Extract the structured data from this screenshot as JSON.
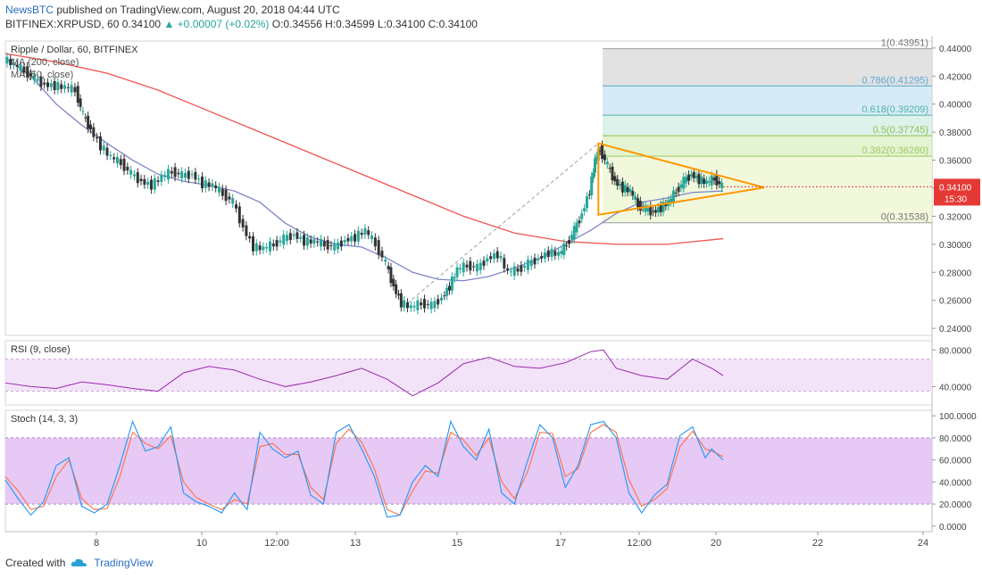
{
  "header": {
    "publisher": "NewsBTC",
    "published_text": " published on TradingView.com, August 20, 2018 04:44 UTC",
    "symbol": "BITFINEX:XRPUSD, 60",
    "price": "0.34100",
    "change": "+0.00007 (+0.02%)",
    "ohlc": "O:0.34556 H:0.34599 L:0.34100 C:0.34100"
  },
  "chart_data": [
    {
      "type": "candlestick",
      "title": "Ripple / Dollar, 60, BITFINEX",
      "indicators": [
        "MA (200, close)",
        "MA (50, close)"
      ],
      "ylim": [
        0.235,
        0.445
      ],
      "y_ticks": [
        "0.44000",
        "0.42000",
        "0.40000",
        "0.38000",
        "0.36000",
        "0.34000",
        "0.32000",
        "0.30000",
        "0.28000",
        "0.26000",
        "0.24000"
      ],
      "last_price": "0.34100",
      "countdown": "15:30",
      "x_ticks": [
        "8",
        "10",
        "12:00",
        "13",
        "15",
        "17",
        "12:00",
        "20",
        "22",
        "24"
      ],
      "fib_levels": [
        {
          "label": "1(0.43951)",
          "value": 0.43951
        },
        {
          "label": "0.786(0.41295)",
          "value": 0.41295
        },
        {
          "label": "0.618(0.39209)",
          "value": 0.39209
        },
        {
          "label": "0.5(0.37745)",
          "value": 0.37745
        },
        {
          "label": "0.382(0.36280)",
          "value": 0.3628
        },
        {
          "label": "0(0.31538)",
          "value": 0.31538
        }
      ],
      "price_path": [
        [
          0,
          0.432
        ],
        [
          8,
          0.428
        ],
        [
          16,
          0.424
        ],
        [
          24,
          0.418
        ],
        [
          32,
          0.414
        ],
        [
          40,
          0.413
        ],
        [
          48,
          0.412
        ],
        [
          56,
          0.41
        ],
        [
          62,
          0.392
        ],
        [
          68,
          0.382
        ],
        [
          76,
          0.37
        ],
        [
          84,
          0.362
        ],
        [
          92,
          0.358
        ],
        [
          100,
          0.35
        ],
        [
          108,
          0.345
        ],
        [
          116,
          0.342
        ],
        [
          124,
          0.348
        ],
        [
          132,
          0.352
        ],
        [
          140,
          0.349
        ],
        [
          148,
          0.35
        ],
        [
          156,
          0.343
        ],
        [
          164,
          0.342
        ],
        [
          172,
          0.336
        ],
        [
          180,
          0.33
        ],
        [
          188,
          0.312
        ],
        [
          196,
          0.298
        ],
        [
          204,
          0.297
        ],
        [
          212,
          0.3
        ],
        [
          220,
          0.304
        ],
        [
          228,
          0.307
        ],
        [
          236,
          0.302
        ],
        [
          244,
          0.302
        ],
        [
          252,
          0.3
        ],
        [
          260,
          0.298
        ],
        [
          268,
          0.303
        ],
        [
          276,
          0.305
        ],
        [
          284,
          0.31
        ],
        [
          292,
          0.3
        ],
        [
          300,
          0.286
        ],
        [
          306,
          0.27
        ],
        [
          312,
          0.258
        ],
        [
          320,
          0.255
        ],
        [
          328,
          0.258
        ],
        [
          336,
          0.256
        ],
        [
          344,
          0.262
        ],
        [
          350,
          0.27
        ],
        [
          356,
          0.282
        ],
        [
          364,
          0.285
        ],
        [
          372,
          0.283
        ],
        [
          380,
          0.29
        ],
        [
          388,
          0.293
        ],
        [
          396,
          0.28
        ],
        [
          404,
          0.282
        ],
        [
          412,
          0.286
        ],
        [
          420,
          0.29
        ],
        [
          428,
          0.294
        ],
        [
          436,
          0.293
        ],
        [
          442,
          0.3
        ],
        [
          448,
          0.31
        ],
        [
          454,
          0.322
        ],
        [
          460,
          0.338
        ],
        [
          464,
          0.36
        ],
        [
          468,
          0.368
        ],
        [
          474,
          0.356
        ],
        [
          480,
          0.345
        ],
        [
          486,
          0.34
        ],
        [
          492,
          0.338
        ],
        [
          498,
          0.328
        ],
        [
          504,
          0.325
        ],
        [
          510,
          0.323
        ],
        [
          516,
          0.326
        ],
        [
          522,
          0.33
        ],
        [
          528,
          0.338
        ],
        [
          534,
          0.345
        ],
        [
          540,
          0.35
        ],
        [
          546,
          0.346
        ],
        [
          552,
          0.344
        ],
        [
          558,
          0.347
        ],
        [
          564,
          0.341
        ]
      ],
      "ma200": [
        [
          0,
          0.436
        ],
        [
          40,
          0.43
        ],
        [
          80,
          0.422
        ],
        [
          120,
          0.41
        ],
        [
          160,
          0.395
        ],
        [
          200,
          0.38
        ],
        [
          240,
          0.365
        ],
        [
          280,
          0.35
        ],
        [
          320,
          0.335
        ],
        [
          360,
          0.32
        ],
        [
          400,
          0.308
        ],
        [
          440,
          0.302
        ],
        [
          480,
          0.3
        ],
        [
          520,
          0.3
        ],
        [
          564,
          0.304
        ]
      ],
      "ma50": [
        [
          0,
          0.433
        ],
        [
          20,
          0.42
        ],
        [
          40,
          0.4
        ],
        [
          60,
          0.385
        ],
        [
          80,
          0.372
        ],
        [
          100,
          0.36
        ],
        [
          120,
          0.35
        ],
        [
          140,
          0.345
        ],
        [
          160,
          0.342
        ],
        [
          180,
          0.338
        ],
        [
          200,
          0.33
        ],
        [
          220,
          0.315
        ],
        [
          240,
          0.305
        ],
        [
          260,
          0.3
        ],
        [
          280,
          0.298
        ],
        [
          300,
          0.29
        ],
        [
          320,
          0.28
        ],
        [
          340,
          0.275
        ],
        [
          360,
          0.274
        ],
        [
          380,
          0.277
        ],
        [
          400,
          0.283
        ],
        [
          420,
          0.29
        ],
        [
          440,
          0.3
        ],
        [
          460,
          0.31
        ],
        [
          480,
          0.322
        ],
        [
          500,
          0.33
        ],
        [
          520,
          0.333
        ],
        [
          540,
          0.337
        ],
        [
          564,
          0.338
        ]
      ]
    },
    {
      "type": "line",
      "title": "RSI (9, close)",
      "ylim": [
        20,
        90
      ],
      "y_ticks": [
        "80.0000",
        "40.0000"
      ],
      "band": [
        35,
        70
      ],
      "values": [
        [
          0,
          44
        ],
        [
          20,
          40
        ],
        [
          40,
          38
        ],
        [
          60,
          45
        ],
        [
          80,
          42
        ],
        [
          100,
          38
        ],
        [
          120,
          35
        ],
        [
          140,
          55
        ],
        [
          160,
          62
        ],
        [
          180,
          58
        ],
        [
          200,
          48
        ],
        [
          220,
          40
        ],
        [
          240,
          45
        ],
        [
          260,
          52
        ],
        [
          280,
          60
        ],
        [
          300,
          48
        ],
        [
          320,
          30
        ],
        [
          340,
          44
        ],
        [
          360,
          65
        ],
        [
          380,
          72
        ],
        [
          400,
          62
        ],
        [
          420,
          60
        ],
        [
          440,
          66
        ],
        [
          460,
          78
        ],
        [
          470,
          80
        ],
        [
          480,
          60
        ],
        [
          500,
          52
        ],
        [
          520,
          48
        ],
        [
          540,
          70
        ],
        [
          555,
          60
        ],
        [
          564,
          52
        ]
      ]
    },
    {
      "type": "line",
      "title": "Stoch (14, 3, 3)",
      "ylim": [
        -5,
        105
      ],
      "y_ticks": [
        "100.0000",
        "80.0000",
        "60.0000",
        "40.0000",
        "20.0000",
        "0.0000"
      ],
      "band": [
        20,
        80
      ],
      "k": [
        [
          0,
          42
        ],
        [
          10,
          25
        ],
        [
          20,
          10
        ],
        [
          30,
          22
        ],
        [
          40,
          55
        ],
        [
          50,
          62
        ],
        [
          60,
          18
        ],
        [
          70,
          12
        ],
        [
          80,
          20
        ],
        [
          90,
          55
        ],
        [
          100,
          95
        ],
        [
          110,
          68
        ],
        [
          120,
          72
        ],
        [
          130,
          90
        ],
        [
          140,
          30
        ],
        [
          150,
          22
        ],
        [
          160,
          18
        ],
        [
          170,
          12
        ],
        [
          180,
          30
        ],
        [
          190,
          15
        ],
        [
          200,
          85
        ],
        [
          210,
          70
        ],
        [
          220,
          62
        ],
        [
          230,
          68
        ],
        [
          240,
          28
        ],
        [
          250,
          20
        ],
        [
          260,
          85
        ],
        [
          270,
          92
        ],
        [
          280,
          70
        ],
        [
          290,
          45
        ],
        [
          300,
          8
        ],
        [
          310,
          10
        ],
        [
          320,
          40
        ],
        [
          330,
          55
        ],
        [
          340,
          45
        ],
        [
          350,
          95
        ],
        [
          360,
          72
        ],
        [
          370,
          60
        ],
        [
          380,
          88
        ],
        [
          390,
          30
        ],
        [
          400,
          20
        ],
        [
          410,
          58
        ],
        [
          420,
          92
        ],
        [
          430,
          80
        ],
        [
          440,
          35
        ],
        [
          450,
          55
        ],
        [
          460,
          92
        ],
        [
          470,
          95
        ],
        [
          480,
          80
        ],
        [
          490,
          30
        ],
        [
          500,
          12
        ],
        [
          510,
          28
        ],
        [
          520,
          38
        ],
        [
          530,
          82
        ],
        [
          540,
          90
        ],
        [
          550,
          62
        ],
        [
          555,
          70
        ],
        [
          564,
          60
        ]
      ],
      "d": [
        [
          0,
          45
        ],
        [
          10,
          32
        ],
        [
          20,
          15
        ],
        [
          30,
          18
        ],
        [
          40,
          45
        ],
        [
          50,
          60
        ],
        [
          60,
          25
        ],
        [
          70,
          15
        ],
        [
          80,
          16
        ],
        [
          90,
          45
        ],
        [
          100,
          85
        ],
        [
          110,
          75
        ],
        [
          120,
          70
        ],
        [
          130,
          82
        ],
        [
          140,
          40
        ],
        [
          150,
          26
        ],
        [
          160,
          20
        ],
        [
          170,
          15
        ],
        [
          180,
          24
        ],
        [
          190,
          20
        ],
        [
          200,
          72
        ],
        [
          210,
          75
        ],
        [
          220,
          65
        ],
        [
          230,
          65
        ],
        [
          240,
          35
        ],
        [
          250,
          24
        ],
        [
          260,
          75
        ],
        [
          270,
          88
        ],
        [
          280,
          76
        ],
        [
          290,
          52
        ],
        [
          300,
          15
        ],
        [
          310,
          10
        ],
        [
          320,
          32
        ],
        [
          330,
          50
        ],
        [
          340,
          48
        ],
        [
          350,
          85
        ],
        [
          360,
          78
        ],
        [
          370,
          64
        ],
        [
          380,
          80
        ],
        [
          390,
          40
        ],
        [
          400,
          25
        ],
        [
          410,
          48
        ],
        [
          420,
          85
        ],
        [
          430,
          84
        ],
        [
          440,
          45
        ],
        [
          450,
          52
        ],
        [
          460,
          85
        ],
        [
          470,
          92
        ],
        [
          480,
          85
        ],
        [
          490,
          42
        ],
        [
          500,
          18
        ],
        [
          510,
          24
        ],
        [
          520,
          34
        ],
        [
          530,
          72
        ],
        [
          540,
          86
        ],
        [
          550,
          70
        ],
        [
          555,
          68
        ],
        [
          564,
          63
        ]
      ]
    }
  ],
  "footer": {
    "created_with": "Created with",
    "brand": "TradingView"
  },
  "colors": {
    "candle_up": "#26a69a",
    "ma200": "#ef5350",
    "ma50": "#7e84c8",
    "triangle": "#ff9800",
    "rsi": "#9c27b0",
    "stoch_k": "#2196f3",
    "stoch_d": "#ff7043",
    "price_tag": "#e53935"
  }
}
